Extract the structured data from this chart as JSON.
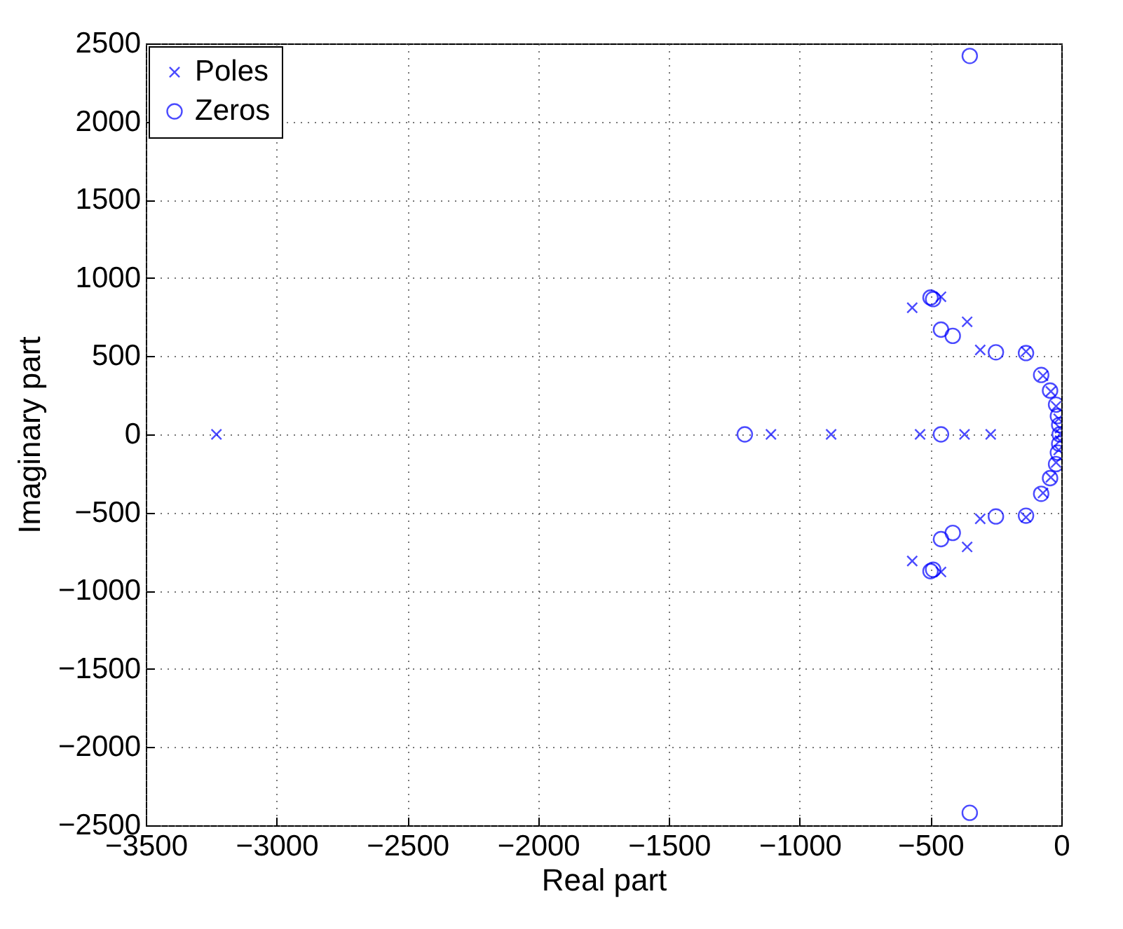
{
  "chart_data": {
    "type": "scatter",
    "xlabel": "Real part",
    "ylabel": "Imaginary part",
    "xlim": [
      -3500,
      0
    ],
    "ylim": [
      -2500,
      2500
    ],
    "xticks": [
      -3500,
      -3000,
      -2500,
      -2000,
      -1500,
      -1000,
      -500,
      0
    ],
    "yticks": [
      -2500,
      -2000,
      -1500,
      -1000,
      -500,
      0,
      500,
      1000,
      1500,
      2000,
      2500
    ],
    "grid": true,
    "legend": "top left",
    "series": [
      {
        "name": "Poles",
        "color": "#0000ff",
        "marker": "cross",
        "x": [
          -3230,
          -1110,
          -880,
          -540,
          -370,
          -270,
          -570,
          -570,
          -460,
          -460,
          -360,
          -360,
          -310,
          -310,
          -135,
          -135,
          -70,
          -70,
          -40,
          -40,
          -20,
          -20,
          -10,
          -10,
          -5,
          -5,
          -3
        ],
        "values": [
          0,
          0,
          0,
          0,
          0,
          0,
          810,
          -810,
          880,
          -880,
          720,
          -720,
          540,
          -540,
          530,
          -530,
          375,
          -375,
          275,
          -275,
          180,
          -180,
          100,
          -100,
          40,
          -40,
          0
        ]
      },
      {
        "name": "Zeros",
        "color": "#0000ff",
        "marker": "circle",
        "x": [
          -1210,
          -460,
          -500,
          -500,
          -490,
          -490,
          -460,
          -460,
          -415,
          -415,
          -250,
          -250,
          -135,
          -135,
          -77,
          -77,
          -43,
          -43,
          -20,
          -20,
          -13,
          -13,
          -8,
          -8,
          -6,
          -350,
          -350
        ],
        "values": [
          0,
          0,
          875,
          -875,
          865,
          -865,
          670,
          -670,
          630,
          -630,
          525,
          -525,
          520,
          -520,
          380,
          -380,
          280,
          -280,
          190,
          -190,
          117,
          -117,
          60,
          -60,
          0,
          2420,
          -2420
        ]
      }
    ]
  }
}
